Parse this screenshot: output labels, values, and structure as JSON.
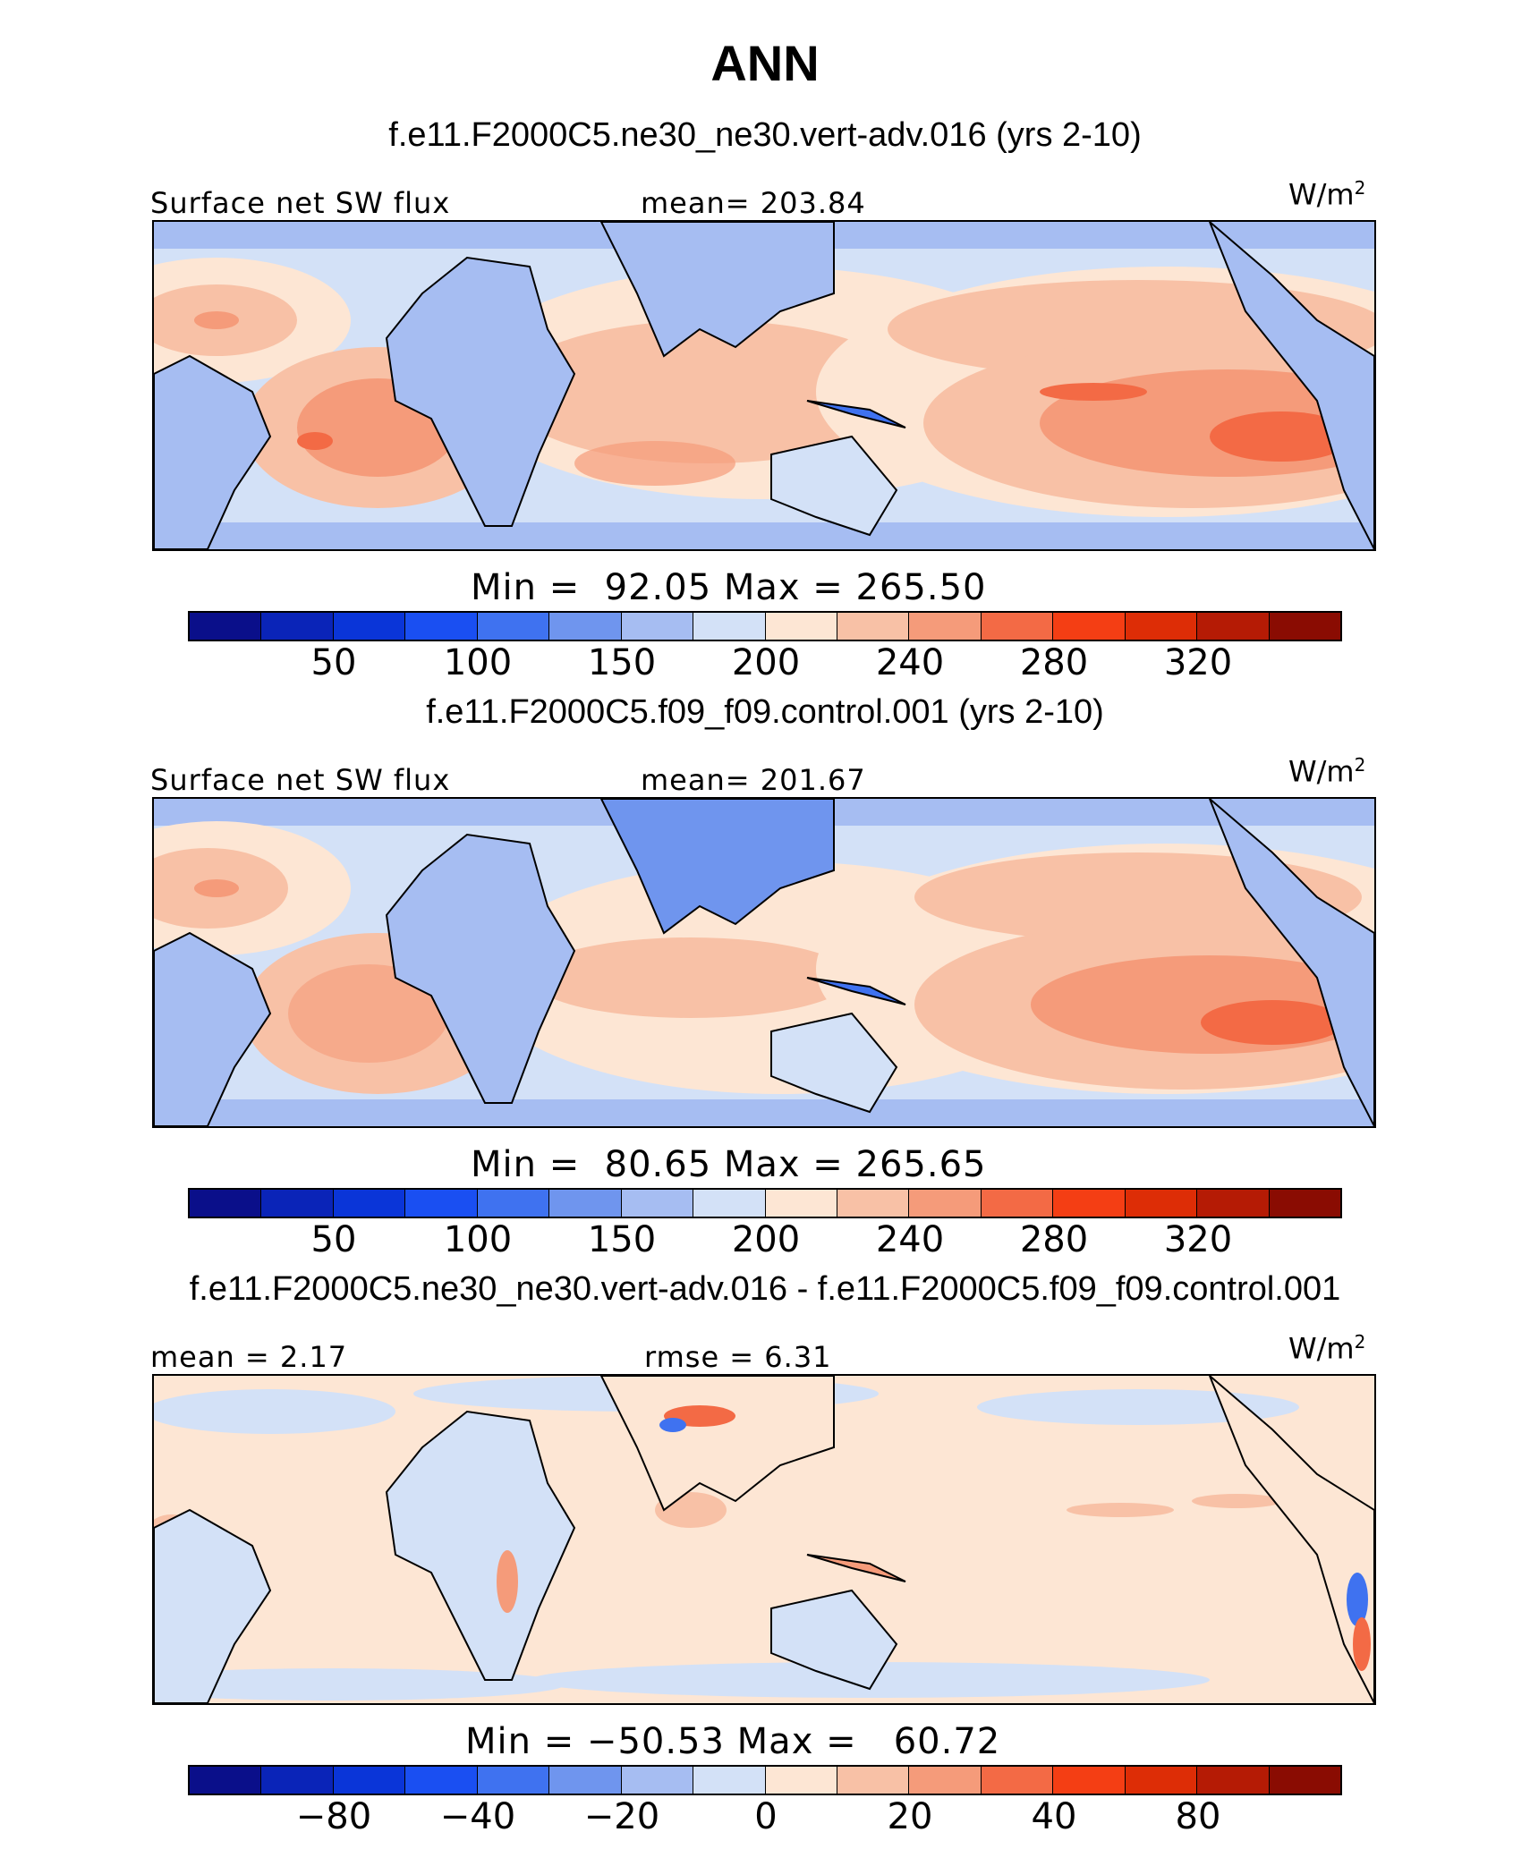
{
  "main_title": "ANN",
  "units_base": "W/m",
  "units_exp": "2",
  "palette": [
    "#0a0f8a",
    "#0a24b8",
    "#0a35d8",
    "#1a4ff2",
    "#3f72f0",
    "#6f95ee",
    "#a6bdf2",
    "#d3e1f7",
    "#fde6d4",
    "#f8c1a6",
    "#f59b7a",
    "#f36a45",
    "#f43e14",
    "#dd2d06",
    "#b51b05",
    "#8a0c02"
  ],
  "panels": [
    {
      "title": "f.e11.F2000C5.ne30_ne30.vert-adv.016 (yrs 2-10)",
      "left_label": "Surface net SW flux",
      "center_label": "mean= 203.84",
      "minmax": "Min =  92.05 Max = 265.50",
      "ticks": [
        "50",
        "100",
        "150",
        "200",
        "240",
        "280",
        "320"
      ]
    },
    {
      "title": "f.e11.F2000C5.f09_f09.control.001 (yrs 2-10)",
      "left_label": "Surface net SW flux",
      "center_label": "mean= 201.67",
      "minmax": "Min =  80.65 Max = 265.65",
      "ticks": [
        "50",
        "100",
        "150",
        "200",
        "240",
        "280",
        "320"
      ]
    },
    {
      "title": "f.e11.F2000C5.ne30_ne30.vert-adv.016 - f.e11.F2000C5.f09_f09.control.001",
      "left_label": "mean =   2.17",
      "center_label": "rmse =   6.31",
      "minmax": "Min = −50.53 Max =   60.72",
      "ticks": [
        "−80",
        "−40",
        "−20",
        "0",
        "20",
        "40",
        "80"
      ]
    }
  ]
}
